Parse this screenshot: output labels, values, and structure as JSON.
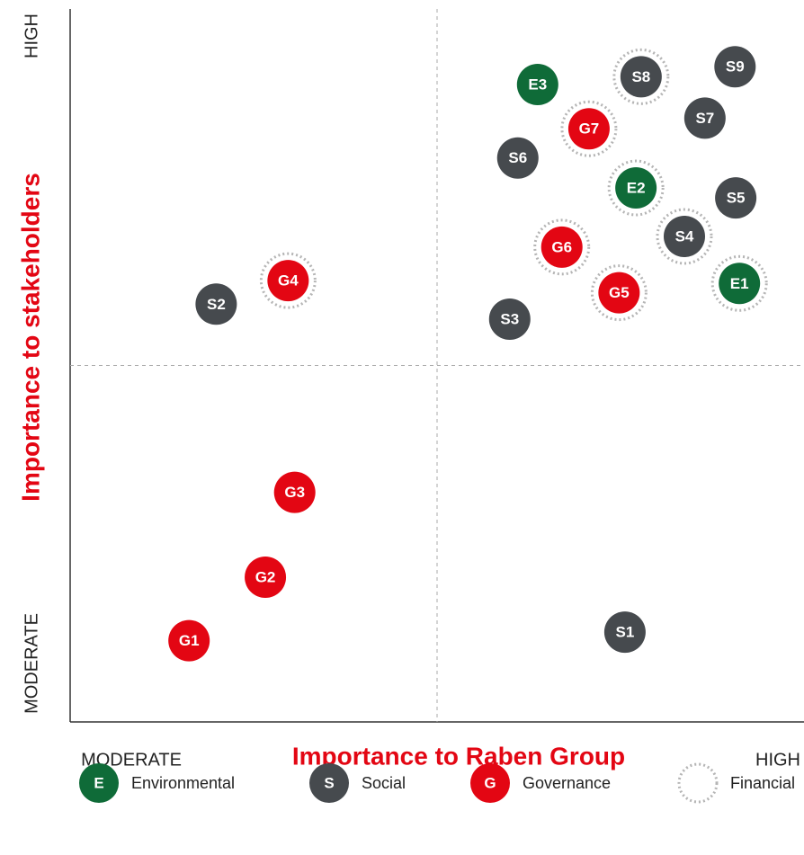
{
  "chart_data": {
    "type": "scatter",
    "x_label": "Importance to Raben Group",
    "y_label": "Importance to stakeholders",
    "x_ends": [
      "MODERATE",
      "HIGH"
    ],
    "y_ends": [
      "MODERATE",
      "HIGH"
    ],
    "xlim": [
      0,
      100
    ],
    "ylim": [
      0,
      100
    ],
    "quadrant_lines": true,
    "financial_label": "Financial",
    "series": [
      {
        "name": "Environmental",
        "symbol": "E",
        "color": "#0f6b38",
        "labels": [
          "E1",
          "E2",
          "E3"
        ],
        "x": [
          91.2,
          77.1,
          63.7
        ],
        "values": [
          61.5,
          74.9,
          89.4
        ],
        "financial": [
          true,
          true,
          false
        ]
      },
      {
        "name": "Social",
        "symbol": "S",
        "color": "#464a4e",
        "labels": [
          "S1",
          "S2",
          "S3",
          "S4",
          "S5",
          "S6",
          "S7",
          "S8",
          "S9"
        ],
        "x": [
          75.6,
          19.9,
          59.9,
          83.7,
          90.7,
          61.0,
          86.5,
          77.8,
          90.6
        ],
        "values": [
          12.6,
          58.6,
          56.5,
          68.1,
          73.5,
          79.1,
          84.7,
          90.5,
          91.9
        ],
        "financial": [
          false,
          false,
          false,
          true,
          false,
          false,
          false,
          true,
          false
        ]
      },
      {
        "name": "Governance",
        "symbol": "G",
        "color": "#e30613",
        "labels": [
          "G1",
          "G2",
          "G3",
          "G4",
          "G5",
          "G6",
          "G7"
        ],
        "x": [
          16.2,
          26.6,
          30.6,
          29.7,
          74.8,
          67.0,
          70.7
        ],
        "values": [
          11.4,
          20.3,
          32.2,
          61.9,
          60.2,
          66.6,
          83.2
        ],
        "financial": [
          false,
          false,
          false,
          true,
          true,
          true,
          true
        ]
      }
    ]
  }
}
